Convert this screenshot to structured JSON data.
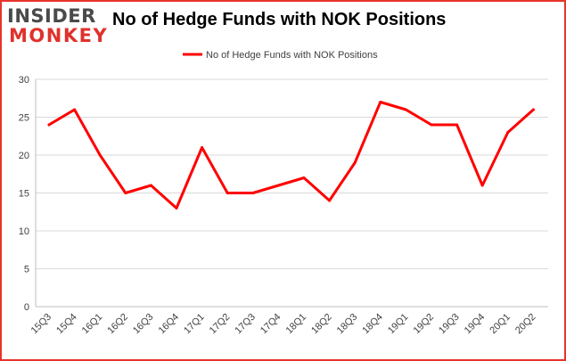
{
  "logo": {
    "line1": "INSIDER",
    "line2": "MONKEY"
  },
  "title": "No of Hedge Funds with NOK Positions",
  "chart_data": {
    "type": "line",
    "title": "No of Hedge Funds with NOK Positions",
    "categories": [
      "15Q3",
      "15Q4",
      "16Q1",
      "16Q2",
      "16Q3",
      "16Q4",
      "17Q1",
      "17Q2",
      "17Q3",
      "17Q4",
      "18Q1",
      "18Q2",
      "18Q3",
      "18Q4",
      "19Q1",
      "19Q2",
      "19Q3",
      "19Q4",
      "20Q1",
      "20Q2"
    ],
    "series": [
      {
        "name": "No of Hedge Funds with NOK Positions",
        "values": [
          24,
          26,
          20,
          15,
          16,
          13,
          21,
          15,
          15,
          16,
          17,
          14,
          19,
          27,
          26,
          24,
          24,
          16,
          23,
          26
        ]
      }
    ],
    "ylim": [
      0,
      30
    ],
    "yticks": [
      0,
      5,
      10,
      15,
      20,
      25,
      30
    ],
    "grid": true,
    "legend": "top",
    "colors": {
      "line": "#ff0000",
      "grid": "#d9d9d9",
      "frame": "#e8332c"
    }
  }
}
